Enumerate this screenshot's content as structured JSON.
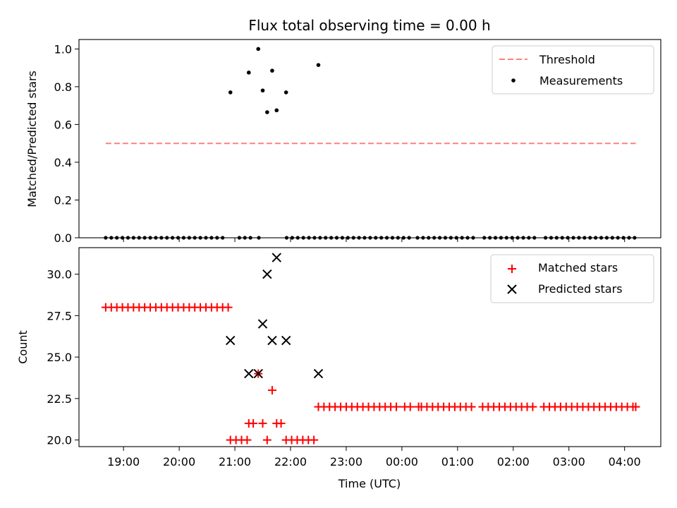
{
  "chart_data": [
    {
      "type": "scatter",
      "title": "Flux total observing time = 0.00 h",
      "xlabel": "",
      "ylabel": "Matched/Predicted stars",
      "ylim": [
        0,
        1.05
      ],
      "yticks": [
        "0.0",
        "0.2",
        "0.4",
        "0.6",
        "0.8",
        "1.0"
      ],
      "xlim_hours": [
        18.2,
        28.65
      ],
      "legend_position": "top-right",
      "legend": [
        "Threshold",
        "Measurements"
      ],
      "threshold": {
        "name": "Threshold",
        "value": 0.5,
        "x_range_hours": [
          18.68,
          28.2
        ],
        "color": "#ff8080"
      },
      "series": [
        {
          "name": "Measurements",
          "color": "#000000",
          "zeros_x": [
            18.68,
            18.78,
            18.88,
            18.98,
            19.08,
            19.18,
            19.28,
            19.38,
            19.48,
            19.58,
            19.68,
            19.78,
            19.88,
            19.98,
            20.08,
            20.18,
            20.28,
            20.38,
            20.48,
            20.58,
            20.68,
            20.78,
            21.08,
            21.18,
            21.28,
            21.43,
            21.93,
            22.03,
            22.13,
            22.23,
            22.33,
            22.43,
            22.53,
            22.63,
            22.73,
            22.83,
            22.93,
            23.03,
            23.13,
            23.23,
            23.33,
            23.43,
            23.53,
            23.63,
            23.73,
            23.83,
            23.93,
            24.03,
            24.13,
            24.28,
            24.38,
            24.48,
            24.58,
            24.68,
            24.78,
            24.88,
            24.98,
            25.08,
            25.18,
            25.28,
            25.48,
            25.58,
            25.68,
            25.78,
            25.88,
            25.98,
            26.08,
            26.18,
            26.28,
            26.38,
            26.58,
            26.68,
            26.78,
            26.88,
            26.98,
            27.08,
            27.18,
            27.28,
            27.38,
            27.48,
            27.58,
            27.68,
            27.78,
            27.88,
            27.98,
            28.08,
            28.18
          ],
          "points": [
            {
              "x": 20.92,
              "y": 0.77
            },
            {
              "x": 21.25,
              "y": 0.875
            },
            {
              "x": 21.42,
              "y": 1.0
            },
            {
              "x": 21.5,
              "y": 0.78
            },
            {
              "x": 21.58,
              "y": 0.665
            },
            {
              "x": 21.67,
              "y": 0.885
            },
            {
              "x": 21.75,
              "y": 0.675
            },
            {
              "x": 21.92,
              "y": 0.77
            },
            {
              "x": 22.5,
              "y": 0.915
            }
          ]
        }
      ]
    },
    {
      "type": "scatter",
      "title": "",
      "xlabel": "Time (UTC)",
      "ylabel": "Count",
      "ylim": [
        19.6,
        31.6
      ],
      "yticks": [
        "20.0",
        "22.5",
        "25.0",
        "27.5",
        "30.0"
      ],
      "xlim_hours": [
        18.2,
        28.65
      ],
      "xticks": [
        "19:00",
        "20:00",
        "21:00",
        "22:00",
        "23:00",
        "00:00",
        "01:00",
        "02:00",
        "03:00",
        "04:00"
      ],
      "legend_position": "top-right",
      "legend": [
        "Matched stars",
        "Predicted stars"
      ],
      "series": [
        {
          "name": "Matched stars",
          "marker": "+",
          "color": "#ff0000",
          "points": [
            {
              "x": 18.68,
              "y": 28
            },
            {
              "x": 18.78,
              "y": 28
            },
            {
              "x": 18.88,
              "y": 28
            },
            {
              "x": 18.98,
              "y": 28
            },
            {
              "x": 19.08,
              "y": 28
            },
            {
              "x": 19.18,
              "y": 28
            },
            {
              "x": 19.28,
              "y": 28
            },
            {
              "x": 19.38,
              "y": 28
            },
            {
              "x": 19.48,
              "y": 28
            },
            {
              "x": 19.58,
              "y": 28
            },
            {
              "x": 19.68,
              "y": 28
            },
            {
              "x": 19.78,
              "y": 28
            },
            {
              "x": 19.88,
              "y": 28
            },
            {
              "x": 19.98,
              "y": 28
            },
            {
              "x": 20.08,
              "y": 28
            },
            {
              "x": 20.18,
              "y": 28
            },
            {
              "x": 20.28,
              "y": 28
            },
            {
              "x": 20.38,
              "y": 28
            },
            {
              "x": 20.48,
              "y": 28
            },
            {
              "x": 20.58,
              "y": 28
            },
            {
              "x": 20.68,
              "y": 28
            },
            {
              "x": 20.78,
              "y": 28
            },
            {
              "x": 20.88,
              "y": 28
            },
            {
              "x": 20.92,
              "y": 20
            },
            {
              "x": 21.02,
              "y": 20
            },
            {
              "x": 21.12,
              "y": 20
            },
            {
              "x": 21.22,
              "y": 20
            },
            {
              "x": 21.25,
              "y": 21
            },
            {
              "x": 21.33,
              "y": 21
            },
            {
              "x": 21.42,
              "y": 24
            },
            {
              "x": 21.5,
              "y": 21
            },
            {
              "x": 21.58,
              "y": 20
            },
            {
              "x": 21.67,
              "y": 23
            },
            {
              "x": 21.75,
              "y": 21
            },
            {
              "x": 21.83,
              "y": 21
            },
            {
              "x": 21.92,
              "y": 20
            },
            {
              "x": 22.02,
              "y": 20
            },
            {
              "x": 22.12,
              "y": 20
            },
            {
              "x": 22.22,
              "y": 20
            },
            {
              "x": 22.32,
              "y": 20
            },
            {
              "x": 22.42,
              "y": 20
            },
            {
              "x": 22.5,
              "y": 22
            },
            {
              "x": 22.6,
              "y": 22
            },
            {
              "x": 22.7,
              "y": 22
            },
            {
              "x": 22.8,
              "y": 22
            },
            {
              "x": 22.9,
              "y": 22
            },
            {
              "x": 23.0,
              "y": 22
            },
            {
              "x": 23.1,
              "y": 22
            },
            {
              "x": 23.2,
              "y": 22
            },
            {
              "x": 23.3,
              "y": 22
            },
            {
              "x": 23.4,
              "y": 22
            },
            {
              "x": 23.5,
              "y": 22
            },
            {
              "x": 23.6,
              "y": 22
            },
            {
              "x": 23.7,
              "y": 22
            },
            {
              "x": 23.8,
              "y": 22
            },
            {
              "x": 23.9,
              "y": 22
            },
            {
              "x": 24.05,
              "y": 22
            },
            {
              "x": 24.15,
              "y": 22
            },
            {
              "x": 24.3,
              "y": 22
            },
            {
              "x": 24.35,
              "y": 22
            },
            {
              "x": 24.45,
              "y": 22
            },
            {
              "x": 24.55,
              "y": 22
            },
            {
              "x": 24.65,
              "y": 22
            },
            {
              "x": 24.75,
              "y": 22
            },
            {
              "x": 24.85,
              "y": 22
            },
            {
              "x": 24.95,
              "y": 22
            },
            {
              "x": 25.05,
              "y": 22
            },
            {
              "x": 25.15,
              "y": 22
            },
            {
              "x": 25.25,
              "y": 22
            },
            {
              "x": 25.45,
              "y": 22
            },
            {
              "x": 25.55,
              "y": 22
            },
            {
              "x": 25.65,
              "y": 22
            },
            {
              "x": 25.75,
              "y": 22
            },
            {
              "x": 25.85,
              "y": 22
            },
            {
              "x": 25.95,
              "y": 22
            },
            {
              "x": 26.05,
              "y": 22
            },
            {
              "x": 26.15,
              "y": 22
            },
            {
              "x": 26.25,
              "y": 22
            },
            {
              "x": 26.35,
              "y": 22
            },
            {
              "x": 26.55,
              "y": 22
            },
            {
              "x": 26.65,
              "y": 22
            },
            {
              "x": 26.75,
              "y": 22
            },
            {
              "x": 26.85,
              "y": 22
            },
            {
              "x": 26.95,
              "y": 22
            },
            {
              "x": 27.05,
              "y": 22
            },
            {
              "x": 27.15,
              "y": 22
            },
            {
              "x": 27.25,
              "y": 22
            },
            {
              "x": 27.35,
              "y": 22
            },
            {
              "x": 27.45,
              "y": 22
            },
            {
              "x": 27.55,
              "y": 22
            },
            {
              "x": 27.65,
              "y": 22
            },
            {
              "x": 27.75,
              "y": 22
            },
            {
              "x": 27.85,
              "y": 22
            },
            {
              "x": 27.95,
              "y": 22
            },
            {
              "x": 28.05,
              "y": 22
            },
            {
              "x": 28.15,
              "y": 22
            },
            {
              "x": 28.2,
              "y": 22
            }
          ]
        },
        {
          "name": "Predicted stars",
          "marker": "x",
          "color": "#000000",
          "points": [
            {
              "x": 20.92,
              "y": 26
            },
            {
              "x": 21.25,
              "y": 24
            },
            {
              "x": 21.42,
              "y": 24
            },
            {
              "x": 21.5,
              "y": 27
            },
            {
              "x": 21.58,
              "y": 30
            },
            {
              "x": 21.67,
              "y": 26
            },
            {
              "x": 21.75,
              "y": 31
            },
            {
              "x": 21.92,
              "y": 26
            },
            {
              "x": 22.5,
              "y": 24
            }
          ]
        }
      ]
    }
  ]
}
